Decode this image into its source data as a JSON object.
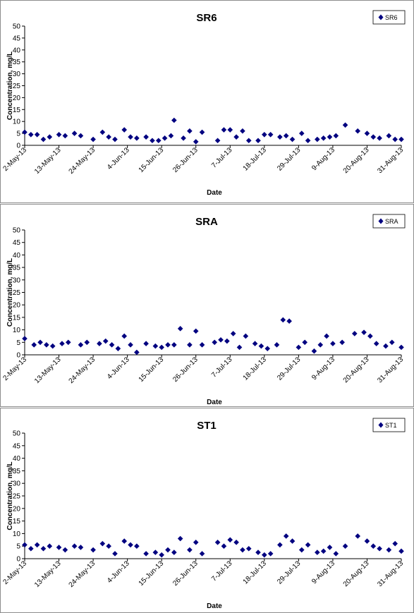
{
  "chart_data": [
    {
      "type": "scatter",
      "title": "SR6",
      "xlabel": "Date",
      "ylabel": "Concentration, mg/L",
      "ylim": [
        0,
        50
      ],
      "yticks": [
        0,
        5,
        10,
        15,
        20,
        25,
        30,
        35,
        40,
        45,
        50
      ],
      "xlim": [
        "2-May-13",
        "31-Aug-13"
      ],
      "xtick_labels": [
        "2-May-13",
        "13-May-13",
        "24-May-13",
        "4-Jun-13",
        "15-Jun-13",
        "26-Jun-13",
        "7-Jul-13",
        "18-Jul-13",
        "29-Jul-13",
        "9-Aug-13",
        "20-Aug-13",
        "31-Aug-13"
      ],
      "grid": false,
      "legend": "top-right",
      "marker_color": "#000080",
      "series": [
        {
          "name": "SR6",
          "x": [
            "2-May-13",
            "4-May-13",
            "6-May-13",
            "8-May-13",
            "10-May-13",
            "13-May-13",
            "15-May-13",
            "18-May-13",
            "20-May-13",
            "24-May-13",
            "27-May-13",
            "29-May-13",
            "31-May-13",
            "3-Jun-13",
            "5-Jun-13",
            "7-Jun-13",
            "10-Jun-13",
            "12-Jun-13",
            "14-Jun-13",
            "16-Jun-13",
            "18-Jun-13",
            "19-Jun-13",
            "22-Jun-13",
            "24-Jun-13",
            "26-Jun-13",
            "28-Jun-13",
            "3-Jul-13",
            "5-Jul-13",
            "7-Jul-13",
            "9-Jul-13",
            "11-Jul-13",
            "13-Jul-13",
            "16-Jul-13",
            "18-Jul-13",
            "20-Jul-13",
            "23-Jul-13",
            "25-Jul-13",
            "27-Jul-13",
            "30-Jul-13",
            "1-Aug-13",
            "4-Aug-13",
            "6-Aug-13",
            "8-Aug-13",
            "10-Aug-13",
            "13-Aug-13",
            "17-Aug-13",
            "20-Aug-13",
            "22-Aug-13",
            "24-Aug-13",
            "27-Aug-13",
            "29-Aug-13",
            "31-Aug-13"
          ],
          "y": [
            5.5,
            4.5,
            4.5,
            2.5,
            3.5,
            4.5,
            4,
            5,
            4,
            2.5,
            5.5,
            3.5,
            2.5,
            6.5,
            3.5,
            3,
            3.5,
            2,
            2,
            3,
            4,
            10.5,
            3,
            6,
            1.5,
            5.5,
            2,
            6.5,
            6.5,
            3.5,
            6,
            2,
            2,
            4.5,
            4.5,
            3.5,
            4,
            2.5,
            5,
            2,
            2.5,
            3,
            3.5,
            4,
            8.5,
            6,
            5,
            3.5,
            3,
            4,
            2.5,
            2.5
          ]
        }
      ]
    },
    {
      "type": "scatter",
      "title": "SRA",
      "xlabel": "Date",
      "ylabel": "Concentration, mg/L",
      "ylim": [
        0,
        50
      ],
      "yticks": [
        0,
        5,
        10,
        15,
        20,
        25,
        30,
        35,
        40,
        45,
        50
      ],
      "xlim": [
        "2-May-13",
        "31-Aug-13"
      ],
      "xtick_labels": [
        "2-May-13",
        "13-May-13",
        "24-May-13",
        "4-Jun-13",
        "15-Jun-13",
        "26-Jun-13",
        "7-Jul-13",
        "18-Jul-13",
        "29-Jul-13",
        "9-Aug-13",
        "20-Aug-13",
        "31-Aug-13"
      ],
      "grid": false,
      "legend": "top-right",
      "marker_color": "#000080",
      "series": [
        {
          "name": "SRA",
          "x": [
            "2-May-13",
            "5-May-13",
            "7-May-13",
            "9-May-13",
            "11-May-13",
            "14-May-13",
            "16-May-13",
            "20-May-13",
            "22-May-13",
            "26-May-13",
            "28-May-13",
            "30-May-13",
            "1-Jun-13",
            "3-Jun-13",
            "5-Jun-13",
            "7-Jun-13",
            "10-Jun-13",
            "13-Jun-13",
            "15-Jun-13",
            "17-Jun-13",
            "19-Jun-13",
            "21-Jun-13",
            "24-Jun-13",
            "26-Jun-13",
            "28-Jun-13",
            "2-Jul-13",
            "4-Jul-13",
            "6-Jul-13",
            "8-Jul-13",
            "10-Jul-13",
            "12-Jul-13",
            "15-Jul-13",
            "17-Jul-13",
            "19-Jul-13",
            "22-Jul-13",
            "24-Jul-13",
            "26-Jul-13",
            "29-Jul-13",
            "31-Jul-13",
            "3-Aug-13",
            "5-Aug-13",
            "7-Aug-13",
            "9-Aug-13",
            "12-Aug-13",
            "16-Aug-13",
            "19-Aug-13",
            "21-Aug-13",
            "23-Aug-13",
            "26-Aug-13",
            "28-Aug-13",
            "31-Aug-13"
          ],
          "y": [
            6.5,
            4,
            5,
            4,
            3.5,
            4.5,
            5,
            4,
            5,
            4.5,
            5.5,
            4,
            2.5,
            7.5,
            4,
            1,
            4.5,
            3.5,
            3,
            4,
            4,
            10.5,
            4,
            9.5,
            4,
            5,
            6,
            5.5,
            8.5,
            3,
            7.5,
            4.5,
            3.5,
            2.5,
            4,
            14,
            13.5,
            3,
            5,
            1.5,
            4,
            7.5,
            4.5,
            5,
            8.5,
            9,
            7.5,
            4.5,
            3.5,
            5,
            3
          ]
        }
      ]
    },
    {
      "type": "scatter",
      "title": "ST1",
      "xlabel": "Date",
      "ylabel": "Concentration, mg/L",
      "ylim": [
        0,
        50
      ],
      "yticks": [
        0,
        5,
        10,
        15,
        20,
        25,
        30,
        35,
        40,
        45,
        50
      ],
      "xlim": [
        "2-May-13",
        "31-Aug-13"
      ],
      "xtick_labels": [
        "2-May-13",
        "13-May-13",
        "24-May-13",
        "4-Jun-13",
        "15-Jun-13",
        "26-Jun-13",
        "7-Jul-13",
        "18-Jul-13",
        "29-Jul-13",
        "9-Aug-13",
        "20-Aug-13",
        "31-Aug-13"
      ],
      "grid": false,
      "legend": "top-right",
      "marker_color": "#000080",
      "series": [
        {
          "name": "ST1",
          "x": [
            "2-May-13",
            "4-May-13",
            "6-May-13",
            "8-May-13",
            "10-May-13",
            "13-May-13",
            "15-May-13",
            "18-May-13",
            "20-May-13",
            "24-May-13",
            "27-May-13",
            "29-May-13",
            "31-May-13",
            "3-Jun-13",
            "5-Jun-13",
            "7-Jun-13",
            "10-Jun-13",
            "13-Jun-13",
            "15-Jun-13",
            "17-Jun-13",
            "19-Jun-13",
            "21-Jun-13",
            "24-Jun-13",
            "26-Jun-13",
            "28-Jun-13",
            "3-Jul-13",
            "5-Jul-13",
            "7-Jul-13",
            "9-Jul-13",
            "11-Jul-13",
            "13-Jul-13",
            "16-Jul-13",
            "18-Jul-13",
            "20-Jul-13",
            "23-Jul-13",
            "25-Jul-13",
            "27-Jul-13",
            "30-Jul-13",
            "1-Aug-13",
            "4-Aug-13",
            "6-Aug-13",
            "8-Aug-13",
            "10-Aug-13",
            "13-Aug-13",
            "17-Aug-13",
            "20-Aug-13",
            "22-Aug-13",
            "24-Aug-13",
            "27-Aug-13",
            "29-Aug-13",
            "31-Aug-13"
          ],
          "y": [
            5.5,
            4,
            5.5,
            4,
            5,
            4.5,
            3.5,
            5,
            4.5,
            3.5,
            6,
            5,
            2,
            7,
            5.5,
            5,
            2,
            2.5,
            1.5,
            3.5,
            2.5,
            8,
            3.5,
            6.5,
            2,
            6.5,
            5,
            7.5,
            6.5,
            3.5,
            4,
            2.5,
            1.5,
            2,
            5.5,
            9,
            7,
            3.5,
            5.5,
            2.5,
            3,
            4.5,
            2,
            5,
            9,
            7,
            5,
            4,
            3.5,
            6,
            3
          ]
        }
      ]
    }
  ]
}
